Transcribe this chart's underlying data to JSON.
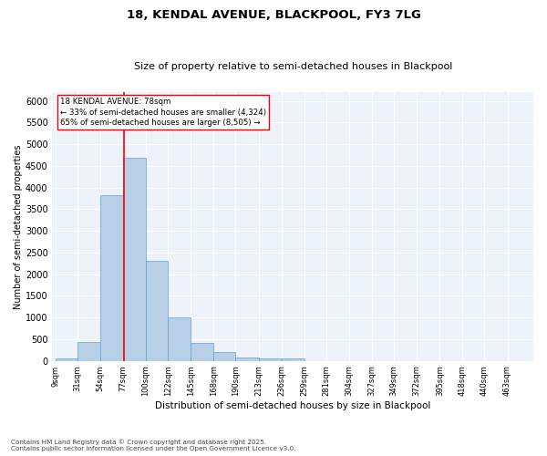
{
  "title1": "18, KENDAL AVENUE, BLACKPOOL, FY3 7LG",
  "title2": "Size of property relative to semi-detached houses in Blackpool",
  "xlabel": "Distribution of semi-detached houses by size in Blackpool",
  "ylabel": "Number of semi-detached properties",
  "footnote": "Contains HM Land Registry data © Crown copyright and database right 2025.\nContains public sector information licensed under the Open Government Licence v3.0.",
  "annotation_title": "18 KENDAL AVENUE: 78sqm",
  "annotation_line1": "← 33% of semi-detached houses are smaller (4,324)",
  "annotation_line2": "65% of semi-detached houses are larger (8,505) →",
  "property_size": 78,
  "bar_color": "#b8cfe8",
  "bar_edgecolor": "#6b9ec8",
  "vline_color": "red",
  "annotation_box_edgecolor": "red",
  "background_color": "#eef2fa",
  "grid_color": "white",
  "categories": [
    "9sqm",
    "31sqm",
    "54sqm",
    "77sqm",
    "100sqm",
    "122sqm",
    "145sqm",
    "168sqm",
    "190sqm",
    "213sqm",
    "236sqm",
    "259sqm",
    "281sqm",
    "304sqm",
    "327sqm",
    "349sqm",
    "372sqm",
    "395sqm",
    "418sqm",
    "440sqm",
    "463sqm"
  ],
  "bin_edges": [
    9,
    31,
    54,
    77,
    100,
    122,
    145,
    168,
    190,
    213,
    236,
    259,
    281,
    304,
    327,
    349,
    372,
    395,
    418,
    440,
    463
  ],
  "values": [
    50,
    430,
    3820,
    4680,
    2300,
    1000,
    410,
    210,
    80,
    60,
    55,
    0,
    0,
    0,
    0,
    0,
    0,
    0,
    0,
    0,
    0
  ],
  "ylim": [
    0,
    6200
  ],
  "yticks": [
    0,
    500,
    1000,
    1500,
    2000,
    2500,
    3000,
    3500,
    4000,
    4500,
    5000,
    5500,
    6000
  ]
}
